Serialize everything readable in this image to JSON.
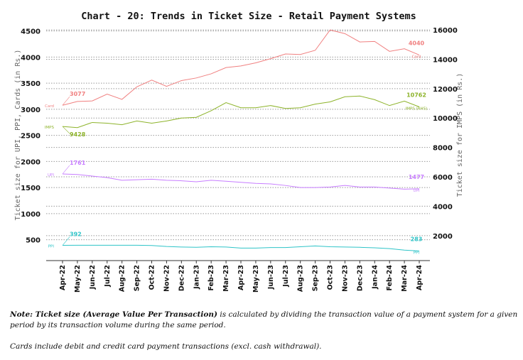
{
  "chart_data": {
    "type": "line",
    "title": "Chart - 20: Trends in Ticket Size - Retail Payment Systems",
    "ylabel": "Ticket size for UPI, PPI, Cards (in Rs.)",
    "y2label": "Ticket size for IMPS (in Rs.)",
    "ylim": [
      100,
      4550
    ],
    "y2lim": [
      300,
      16100
    ],
    "yticks": [
      500,
      1000,
      1500,
      2000,
      2500,
      3000,
      3500,
      4000,
      4500
    ],
    "y2ticks": [
      2000,
      4000,
      6000,
      8000,
      10000,
      12000,
      14000,
      16000
    ],
    "grid": "horizontal dotted",
    "categories": [
      "Apr-22",
      "May-22",
      "Jun-22",
      "Jul-22",
      "Aug-22",
      "Sep-22",
      "Oct-22",
      "Nov-22",
      "Dec-22",
      "Jan-23",
      "Feb-23",
      "Mar-23",
      "Apr-23",
      "May-23",
      "Jun-23",
      "Jul-23",
      "Aug-23",
      "Sep-23",
      "Oct-23",
      "Nov-23",
      "Dec-23",
      "Jan-24",
      "Feb-24",
      "Mar-24",
      "Apr-24"
    ],
    "series": [
      {
        "name": "Card",
        "axis": "left",
        "color": "#f08080",
        "start_label": "3077",
        "end_label": "4040",
        "values": [
          3077,
          3150,
          3160,
          3290,
          3190,
          3430,
          3560,
          3440,
          3550,
          3600,
          3680,
          3800,
          3830,
          3890,
          3970,
          4060,
          4050,
          4130,
          4520,
          4450,
          4290,
          4300,
          4110,
          4160,
          4040
        ]
      },
      {
        "name": "IMPS (RHS)",
        "axis": "right",
        "color": "#8db32a",
        "start_label": "9428",
        "end_label": "10762",
        "values": [
          9428,
          9350,
          9700,
          9650,
          9550,
          9800,
          9650,
          9800,
          10000,
          10050,
          10500,
          11050,
          10700,
          10700,
          10850,
          10650,
          10700,
          10950,
          11100,
          11450,
          11500,
          11250,
          10850,
          11150,
          10762
        ]
      },
      {
        "name": "UPI",
        "axis": "left",
        "color": "#c77dff",
        "start_label": "1761",
        "end_label": "1477",
        "values": [
          1761,
          1750,
          1720,
          1690,
          1640,
          1650,
          1660,
          1640,
          1630,
          1610,
          1640,
          1620,
          1600,
          1580,
          1570,
          1540,
          1500,
          1500,
          1510,
          1540,
          1510,
          1510,
          1490,
          1470,
          1477
        ]
      },
      {
        "name": "PPI",
        "axis": "left",
        "color": "#2ec4c8",
        "start_label": "392",
        "end_label": "283",
        "values": [
          392,
          395,
          395,
          395,
          395,
          395,
          390,
          370,
          360,
          355,
          365,
          360,
          340,
          340,
          350,
          350,
          365,
          380,
          365,
          360,
          355,
          345,
          330,
          300,
          283
        ]
      }
    ]
  },
  "notes": {
    "note_bold": "Note: Ticket size (Average Value Per Transaction)",
    "note_rest": " is calculated by dividing the transaction value of a payment system for a given period by its transaction volume during the same period.",
    "cards": "Cards include debit and credit card payment transactions (excl. cash withdrawal)."
  }
}
